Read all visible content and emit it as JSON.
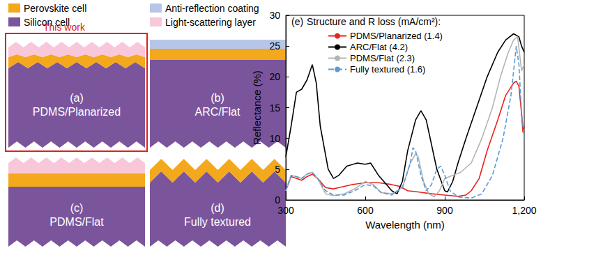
{
  "diagram": {
    "legend": [
      {
        "label": "Perovskite cell",
        "color": "#f4a81c"
      },
      {
        "label": "Silicon cell",
        "color": "#7b559c"
      },
      {
        "label": "Anti-reflection coating",
        "color": "#b7c6e8"
      },
      {
        "label": "Light-scattering layer",
        "color": "#f8c8da"
      }
    ],
    "highlight": {
      "text": "This work",
      "color": "#e0201b"
    },
    "panels": [
      {
        "label": "(a)",
        "name": "PDMS/Planarized"
      },
      {
        "label": "(b)",
        "name": "ARC/Flat"
      },
      {
        "label": "(c)",
        "name": "PDMS/Flat"
      },
      {
        "label": "(d)",
        "name": "Fully textured"
      }
    ]
  },
  "chart_data": {
    "type": "line",
    "panel_label": "(e)",
    "legend_title": "Structure and R loss (mA/cm²):",
    "x_label": "Wavelength (nm)",
    "y_label": "Reflectance (%)",
    "xlim": [
      300,
      1200
    ],
    "xticks": [
      300,
      600,
      900,
      1200
    ],
    "ylim": [
      0,
      30
    ],
    "yticks": [
      0,
      5,
      10,
      15,
      20,
      25,
      30
    ],
    "grid": false,
    "legend": "upper left",
    "series": [
      {
        "name": "PDMS/Planarized (1.4)",
        "color": "#e8231c",
        "line_style": "solid",
        "x": [
          300,
          320,
          340,
          360,
          380,
          400,
          420,
          450,
          480,
          500,
          550,
          600,
          650,
          700,
          730,
          760,
          800,
          850,
          900,
          950,
          980,
          1000,
          1030,
          1060,
          1100,
          1130,
          1160,
          1170,
          1180,
          1190,
          1195,
          1200
        ],
        "values": [
          1.5,
          3.8,
          3.5,
          3.2,
          3.8,
          4.2,
          3.5,
          2.0,
          1.8,
          2.0,
          2.5,
          2.8,
          2.8,
          2.5,
          2.2,
          1.5,
          1.3,
          1.0,
          0.8,
          0.6,
          0.8,
          1.5,
          3.5,
          8.0,
          13.0,
          17.0,
          19.0,
          19.3,
          18.5,
          14.0,
          11.0,
          12.0
        ]
      },
      {
        "name": "ARC/Flat (4.2)",
        "color": "#000000",
        "line_style": "solid",
        "x": [
          300,
          320,
          340,
          360,
          380,
          400,
          415,
          430,
          460,
          480,
          500,
          530,
          570,
          600,
          620,
          650,
          700,
          720,
          740,
          760,
          790,
          810,
          830,
          850,
          870,
          900,
          910,
          930,
          950,
          980,
          1020,
          1060,
          1100,
          1130,
          1160,
          1180,
          1190,
          1200
        ],
        "values": [
          7.0,
          12.0,
          17.5,
          18.0,
          19.5,
          22.0,
          19.0,
          12.0,
          5.0,
          3.5,
          4.0,
          5.5,
          6.0,
          5.8,
          6.0,
          4.0,
          1.5,
          1.0,
          3.0,
          8.0,
          13.0,
          14.5,
          13.0,
          9.0,
          5.0,
          1.5,
          1.3,
          3.0,
          6.0,
          10.0,
          15.0,
          20.0,
          24.0,
          26.0,
          27.0,
          26.5,
          25.0,
          24.0
        ]
      },
      {
        "name": "PDMS/Flat (2.3)",
        "color": "#b4b4b4",
        "line_style": "solid",
        "x": [
          300,
          320,
          340,
          360,
          380,
          400,
          420,
          450,
          480,
          520,
          560,
          600,
          630,
          660,
          700,
          740,
          770,
          790,
          800,
          820,
          840,
          860,
          880,
          900,
          930,
          960,
          1000,
          1040,
          1080,
          1110,
          1140,
          1160,
          1175,
          1190,
          1200
        ],
        "values": [
          1.5,
          4.0,
          3.8,
          3.5,
          4.2,
          4.5,
          3.5,
          1.0,
          0.7,
          1.0,
          1.8,
          3.0,
          2.5,
          1.2,
          1.0,
          2.0,
          6.0,
          7.5,
          7.0,
          3.0,
          1.0,
          0.5,
          1.5,
          3.5,
          4.0,
          4.5,
          6.0,
          10.0,
          15.0,
          20.0,
          24.0,
          26.0,
          26.5,
          21.0,
          22.0
        ]
      },
      {
        "name": "Fully textured (1.6)",
        "color": "#5b9bd5",
        "line_style": "dashed",
        "x": [
          300,
          320,
          340,
          360,
          380,
          400,
          420,
          450,
          480,
          520,
          560,
          600,
          630,
          660,
          700,
          740,
          770,
          780,
          790,
          810,
          830,
          850,
          870,
          885,
          900,
          920,
          950,
          1000,
          1040,
          1080,
          1120,
          1150,
          1170,
          1180,
          1190,
          1200
        ],
        "values": [
          1.5,
          4.0,
          3.8,
          3.5,
          4.2,
          4.5,
          3.5,
          1.5,
          0.8,
          0.8,
          1.5,
          2.5,
          2.3,
          1.2,
          0.8,
          2.0,
          6.0,
          8.5,
          8.0,
          4.0,
          1.5,
          2.5,
          5.0,
          5.5,
          4.0,
          1.5,
          0.5,
          0.3,
          1.0,
          4.0,
          10.0,
          17.0,
          25.0,
          22.0,
          14.0,
          10.0
        ]
      }
    ]
  }
}
